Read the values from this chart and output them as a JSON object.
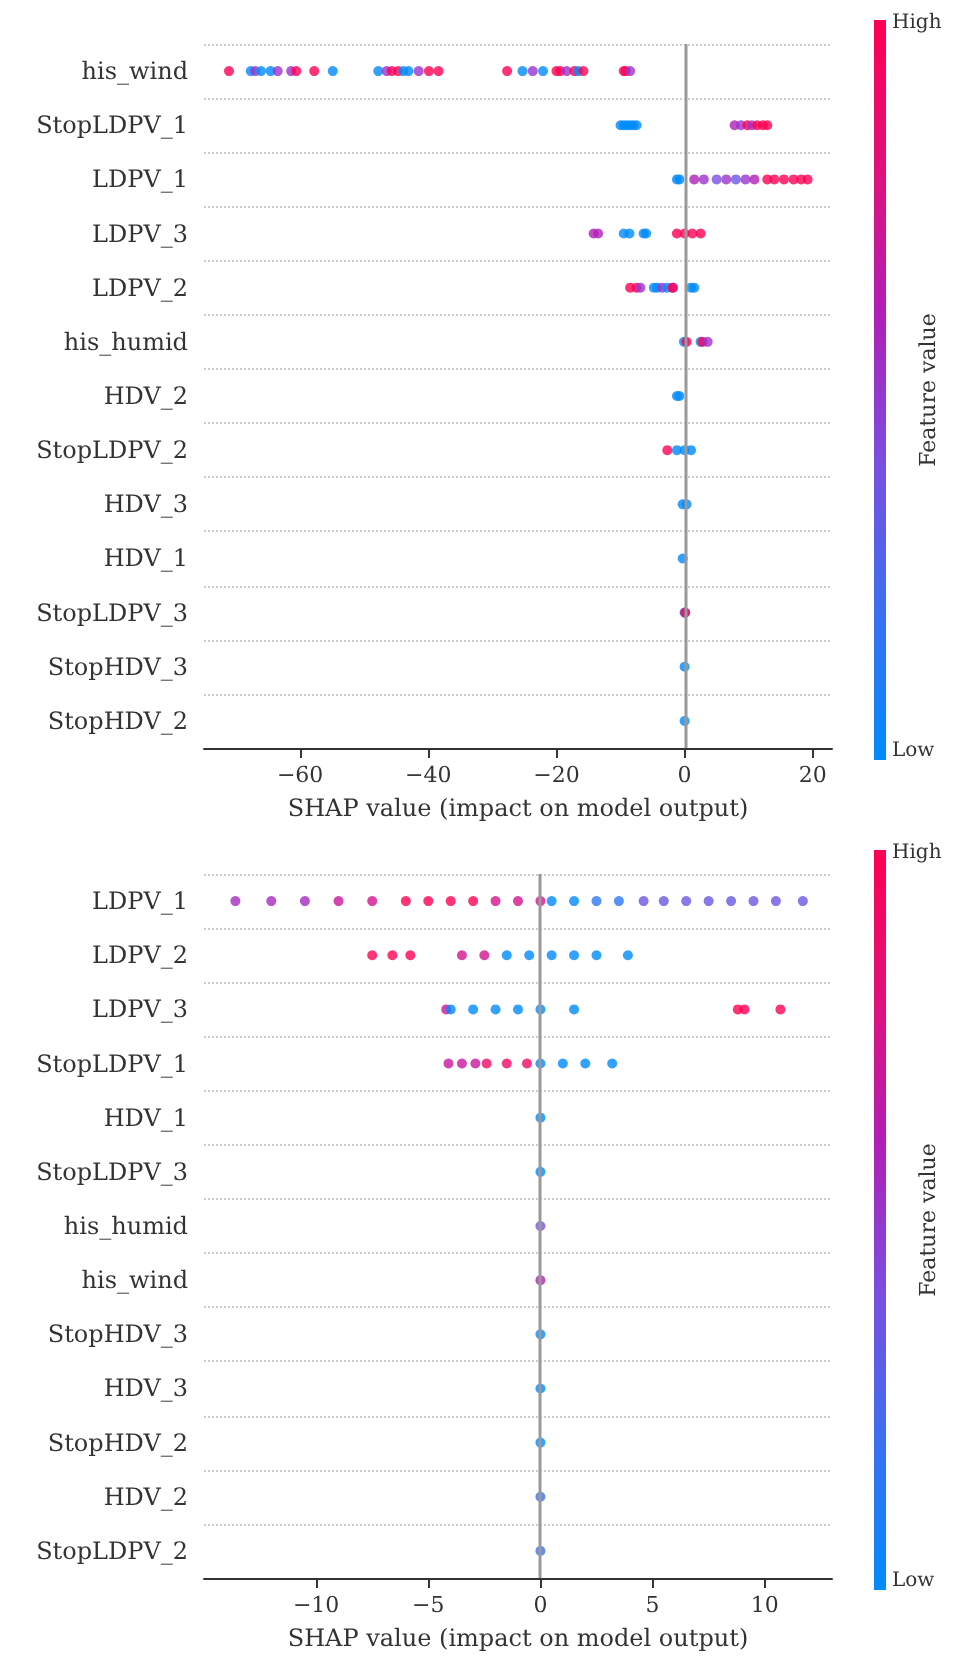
{
  "chart_data": [
    {
      "type": "scatter",
      "orientation": "horizontal",
      "xlabel": "SHAP value (impact on model output)",
      "clabel": "Feature value",
      "annotations": [
        "High",
        "Low"
      ],
      "categories": [
        "his_wind",
        "StopLDPV_1",
        "LDPV_1",
        "LDPV_3",
        "LDPV_2",
        "his_humid",
        "HDV_2",
        "StopLDPV_2",
        "HDV_3",
        "HDV_1",
        "StopLDPV_3",
        "StopHDV_3",
        "StopHDV_2"
      ],
      "xlim": [
        -75,
        23
      ],
      "xticks": [
        {
          "value": -60,
          "label": "−60"
        },
        {
          "value": -40,
          "label": "−40"
        },
        {
          "value": -20,
          "label": "−20"
        },
        0,
        20
      ],
      "grid": "y",
      "marker": "circle",
      "ref_lines": [
        {
          "axis": "x",
          "value": 0,
          "color": "#999999"
        }
      ],
      "series": [
        {
          "x": [
            "his_wind",
            "his_wind",
            "his_wind",
            "his_wind",
            "his_wind",
            "his_wind",
            "his_wind",
            "his_wind",
            "his_wind",
            "his_wind",
            "his_wind",
            "his_wind",
            "his_wind",
            "his_wind",
            "his_wind",
            "his_wind",
            "his_wind",
            "his_wind",
            "his_wind",
            "his_wind",
            "his_wind",
            "his_wind",
            "his_wind",
            "his_wind",
            "his_wind",
            "his_wind",
            "his_wind",
            "his_wind",
            "his_wind",
            "his_wind",
            "his_wind",
            "his_wind",
            "StopLDPV_1",
            "StopLDPV_1",
            "StopLDPV_1",
            "StopLDPV_1",
            "StopLDPV_1",
            "StopLDPV_1",
            "StopLDPV_1",
            "StopLDPV_1",
            "StopLDPV_1",
            "StopLDPV_1",
            "StopLDPV_1",
            "StopLDPV_1",
            "StopLDPV_1",
            "LDPV_1",
            "LDPV_1",
            "LDPV_1",
            "LDPV_1",
            "LDPV_1",
            "LDPV_1",
            "LDPV_1",
            "LDPV_1",
            "LDPV_1",
            "LDPV_1",
            "LDPV_1",
            "LDPV_1",
            "LDPV_1",
            "LDPV_1",
            "LDPV_1",
            "LDPV_3",
            "LDPV_3",
            "LDPV_3",
            "LDPV_3",
            "LDPV_3",
            "LDPV_3",
            "LDPV_3",
            "LDPV_3",
            "LDPV_3",
            "LDPV_3",
            "LDPV_2",
            "LDPV_2",
            "LDPV_2",
            "LDPV_2",
            "LDPV_2",
            "LDPV_2",
            "LDPV_2",
            "LDPV_2",
            "LDPV_2",
            "LDPV_2",
            "LDPV_2",
            "his_humid",
            "his_humid",
            "his_humid",
            "his_humid",
            "his_humid",
            "HDV_2",
            "HDV_2",
            "StopLDPV_2",
            "StopLDPV_2",
            "StopLDPV_2",
            "StopLDPV_2",
            "HDV_3",
            "HDV_3",
            "HDV_1",
            "StopLDPV_3",
            "StopLDPV_3",
            "StopHDV_3",
            "StopHDV_2"
          ],
          "values": [
            -71.1,
            -67.7,
            -67,
            -66.1,
            -64.6,
            -63.5,
            -61.4,
            -60.6,
            -57.8,
            -54.9,
            -47.8,
            -46.5,
            -45.7,
            -44.7,
            -43.9,
            -43.1,
            -41.5,
            -39.9,
            -38.4,
            -27.7,
            -25.3,
            -23.7,
            -22.1,
            -20,
            -19.4,
            -18.4,
            -17.2,
            -16.6,
            -15.8,
            -9.5,
            -9.2,
            -8.5,
            -10,
            -9.5,
            -9,
            -8.5,
            -8,
            -7.5,
            7.8,
            8.8,
            9.8,
            10.5,
            11.3,
            12.2,
            12.9,
            -1.2,
            -0.8,
            1.5,
            3,
            5,
            6.5,
            8,
            9.5,
            10.9,
            12.9,
            14,
            15.5,
            17,
            18.2,
            19.2,
            -14.2,
            -13.5,
            -9.5,
            -8.6,
            -6.4,
            -6,
            -1.2,
            0,
            1.2,
            2.5,
            -8.5,
            -7.5,
            -6.9,
            -4.8,
            -4.3,
            -3.5,
            -2.7,
            -1.8,
            -1.9,
            1,
            1.5,
            -0.1,
            0.3,
            2.5,
            2.8,
            3.6,
            -1.2,
            -0.8,
            -2.7,
            -1.2,
            0,
            1,
            -0.3,
            0.3,
            -0.3,
            0,
            0.1,
            0,
            0
          ],
          "colors": [
            "#ff0052",
            "#008bfb",
            "#9b33cc",
            "#008bfb",
            "#008bfb",
            "#9b33cc",
            "#9b33cc",
            "#ff0052",
            "#ff0052",
            "#008bfb",
            "#008bfb",
            "#9b33cc",
            "#ff0052",
            "#ff0052",
            "#008bfb",
            "#008bfb",
            "#9b33cc",
            "#ff0052",
            "#ff0052",
            "#ff0052",
            "#008bfb",
            "#9b33cc",
            "#008bfb",
            "#ff0052",
            "#ff0052",
            "#9b33cc",
            "#ff0052",
            "#008bfb",
            "#ff0052",
            "#ff0052",
            "#ff0052",
            "#9b33cc",
            "#008bfb",
            "#008bfb",
            "#008bfb",
            "#008bfb",
            "#008bfb",
            "#008bfb",
            "#b01fb8",
            "#9b33cc",
            "#ff0052",
            "#9b33cc",
            "#ff0052",
            "#ff0052",
            "#ff0052",
            "#008bfb",
            "#008bfb",
            "#b01fb8",
            "#9b33cc",
            "#7a4fe0",
            "#9b33cc",
            "#6a57e6",
            "#9b33cc",
            "#b01fb8",
            "#ff0052",
            "#ff0052",
            "#ff0052",
            "#ff0052",
            "#ff0052",
            "#ff0052",
            "#b01fb8",
            "#b01fb8",
            "#008bfb",
            "#008bfb",
            "#008bfb",
            "#008bfb",
            "#ff0052",
            "#ff0052",
            "#ff0052",
            "#ff0052",
            "#ff0052",
            "#ff0052",
            "#9b33cc",
            "#008bfb",
            "#008bfb",
            "#9b33cc",
            "#008bfb",
            "#9b33cc",
            "#ff0052",
            "#008bfb",
            "#008bfb",
            "#008bfb",
            "#ff0052",
            "#008bfb",
            "#ff0052",
            "#9b33cc",
            "#008bfb",
            "#008bfb",
            "#ff0052",
            "#008bfb",
            "#008bfb",
            "#008bfb",
            "#008bfb",
            "#008bfb",
            "#008bfb",
            "#008bfb",
            "#ff0052",
            "#008bfb",
            "#008bfb"
          ]
        }
      ]
    },
    {
      "type": "scatter",
      "orientation": "horizontal",
      "xlabel": "SHAP value (impact on model output)",
      "clabel": "Feature value",
      "annotations": [
        "High",
        "Low"
      ],
      "categories": [
        "LDPV_1",
        "LDPV_2",
        "LDPV_3",
        "StopLDPV_1",
        "HDV_1",
        "StopLDPV_3",
        "his_humid",
        "his_wind",
        "StopHDV_3",
        "HDV_3",
        "StopHDV_2",
        "HDV_2",
        "StopLDPV_2"
      ],
      "xlim": [
        -15,
        13
      ],
      "xticks": [
        {
          "value": -10,
          "label": "−10"
        },
        {
          "value": -5,
          "label": "−5"
        },
        0,
        5,
        10
      ],
      "grid": "y",
      "marker": "circle",
      "ref_lines": [
        {
          "axis": "x",
          "value": 0,
          "color": "#999999"
        }
      ],
      "series": [
        {
          "x": [
            "LDPV_1",
            "LDPV_1",
            "LDPV_1",
            "LDPV_1",
            "LDPV_1",
            "LDPV_1",
            "LDPV_1",
            "LDPV_1",
            "LDPV_1",
            "LDPV_1",
            "LDPV_1",
            "LDPV_1",
            "LDPV_1",
            "LDPV_1",
            "LDPV_1",
            "LDPV_1",
            "LDPV_1",
            "LDPV_1",
            "LDPV_1",
            "LDPV_1",
            "LDPV_1",
            "LDPV_1",
            "LDPV_1",
            "LDPV_1",
            "LDPV_2",
            "LDPV_2",
            "LDPV_2",
            "LDPV_2",
            "LDPV_2",
            "LDPV_2",
            "LDPV_2",
            "LDPV_2",
            "LDPV_2",
            "LDPV_2",
            "LDPV_2",
            "LDPV_3",
            "LDPV_3",
            "LDPV_3",
            "LDPV_3",
            "LDPV_3",
            "LDPV_3",
            "LDPV_3",
            "LDPV_3",
            "LDPV_3",
            "LDPV_3",
            "StopLDPV_1",
            "StopLDPV_1",
            "StopLDPV_1",
            "StopLDPV_1",
            "StopLDPV_1",
            "StopLDPV_1",
            "StopLDPV_1",
            "StopLDPV_1",
            "StopLDPV_1",
            "StopLDPV_1",
            "HDV_1",
            "StopLDPV_3",
            "his_humid",
            "his_wind",
            "StopHDV_3",
            "HDV_3",
            "StopHDV_2",
            "HDV_2",
            "StopLDPV_2"
          ],
          "values": [
            -13.6,
            -12,
            -10.5,
            -9,
            -7.5,
            -6,
            -5,
            -4,
            -3,
            -2,
            -1,
            0,
            0.5,
            1.5,
            2.5,
            3.5,
            4.6,
            5.5,
            6.5,
            7.5,
            8.5,
            9.5,
            10.5,
            11.7,
            -7.5,
            -6.6,
            -5.8,
            -3.5,
            -2.5,
            -1.5,
            -0.5,
            0.5,
            1.5,
            2.5,
            3.9,
            -4.2,
            -4,
            -3,
            -2,
            -1,
            0,
            1.5,
            8.8,
            9.1,
            10.7,
            -4.1,
            -3.5,
            -2.9,
            -2.4,
            -1.5,
            -0.6,
            0,
            1,
            2,
            3.2,
            0,
            0,
            0,
            0,
            0,
            0,
            0,
            0,
            0
          ],
          "colors": [
            "#a62bc2",
            "#a62bc2",
            "#a62bc2",
            "#c8169c",
            "#d5148e",
            "#ff0052",
            "#ff0052",
            "#ff0052",
            "#ff0052",
            "#d5148e",
            "#d5148e",
            "#d5148e",
            "#008bfb",
            "#008bfb",
            "#2d78f4",
            "#2d78f4",
            "#6a57e6",
            "#6a57e6",
            "#6a57e6",
            "#6a57e6",
            "#6a57e6",
            "#6a57e6",
            "#6a57e6",
            "#6a57e6",
            "#ff0052",
            "#ff0052",
            "#ff0052",
            "#d5148e",
            "#d5148e",
            "#008bfb",
            "#008bfb",
            "#008bfb",
            "#008bfb",
            "#008bfb",
            "#008bfb",
            "#d5148e",
            "#008bfb",
            "#008bfb",
            "#008bfb",
            "#008bfb",
            "#008bfb",
            "#008bfb",
            "#ff0052",
            "#ff0052",
            "#ff0052",
            "#c8169c",
            "#c8169c",
            "#c8169c",
            "#f00a64",
            "#f00a64",
            "#f00a64",
            "#008bfb",
            "#008bfb",
            "#008bfb",
            "#008bfb",
            "#008bfb",
            "#008bfb",
            "#7a4fe0",
            "#b01fb8",
            "#008bfb",
            "#008bfb",
            "#008bfb",
            "#3b6ff0",
            "#3b6ff0"
          ]
        }
      ]
    }
  ]
}
